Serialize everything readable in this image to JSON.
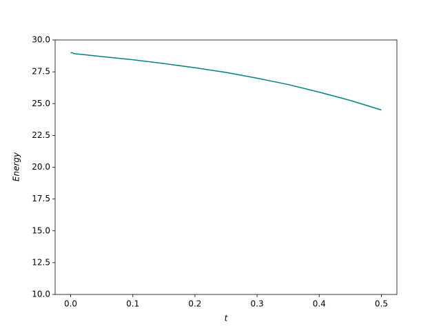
{
  "chart_data": {
    "type": "line",
    "x_label": "t",
    "y_label": "Energy",
    "x": [
      0,
      0.003,
      0.005,
      0.05,
      0.1,
      0.15,
      0.2,
      0.25,
      0.3,
      0.35,
      0.4,
      0.45,
      0.5
    ],
    "series": [
      {
        "color": "#008080",
        "values": [
          29.0,
          29.0,
          28.93,
          28.7,
          28.45,
          28.15,
          27.82,
          27.45,
          27.0,
          26.5,
          25.9,
          25.25,
          24.5
        ]
      }
    ],
    "xlim": [
      -0.025,
      0.525
    ],
    "xticks": [
      {
        "value": 0,
        "label": "0.0"
      },
      0.1,
      0.2,
      0.3,
      0.4,
      0.5
    ],
    "ylim": [
      10,
      30
    ],
    "yticks": [
      {
        "value": 10,
        "label": "10.0"
      },
      12.5,
      {
        "value": 15,
        "label": "15.0"
      },
      17.5,
      {
        "value": 20,
        "label": "20.0"
      },
      22.5,
      {
        "value": 25,
        "label": "25.0"
      },
      27.5,
      {
        "value": 30,
        "label": "30.0"
      }
    ]
  }
}
